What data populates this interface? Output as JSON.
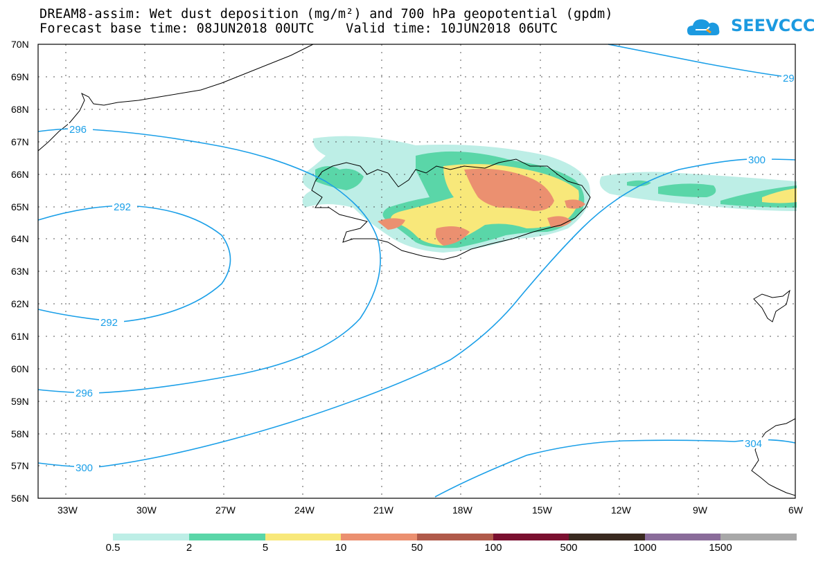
{
  "title": {
    "line1": "DREAM8-assim: Wet dust deposition (mg/m²) and 700 hPa geopotential (gpdm)",
    "line2": "Forecast base time: 08JUN2018 00UTC    Valid time: 10JUN2018 06UTC"
  },
  "logo": {
    "text": "SEEVCCC",
    "color": "#1c9ae0",
    "icon": "cloud-icon"
  },
  "map": {
    "lon_range": [
      -34.0,
      -6.0
    ],
    "lat_range": [
      56.0,
      70.0
    ],
    "lat_labels": [
      "70N",
      "69N",
      "68N",
      "67N",
      "66N",
      "65N",
      "64N",
      "63N",
      "62N",
      "61N",
      "60N",
      "59N",
      "58N",
      "57N",
      "56N"
    ],
    "lon_labels": [
      "33W",
      "30W",
      "27W",
      "24W",
      "21W",
      "18W",
      "15W",
      "12W",
      "9W",
      "6W"
    ],
    "contour_color": "#1a9fe8",
    "contour_labels": [
      "296",
      "292",
      "292",
      "296",
      "300",
      "300",
      "304",
      "29"
    ]
  },
  "legend": {
    "colors": [
      "#bdeee6",
      "#5ad6a8",
      "#f8e87a",
      "#eb9070",
      "#b05a4a",
      "#7a1030",
      "#3a2a20",
      "#8a6c9a",
      "#a8a8a8"
    ],
    "labels": [
      "0.5",
      "2",
      "5",
      "10",
      "50",
      "100",
      "500",
      "1000",
      "1500"
    ]
  }
}
